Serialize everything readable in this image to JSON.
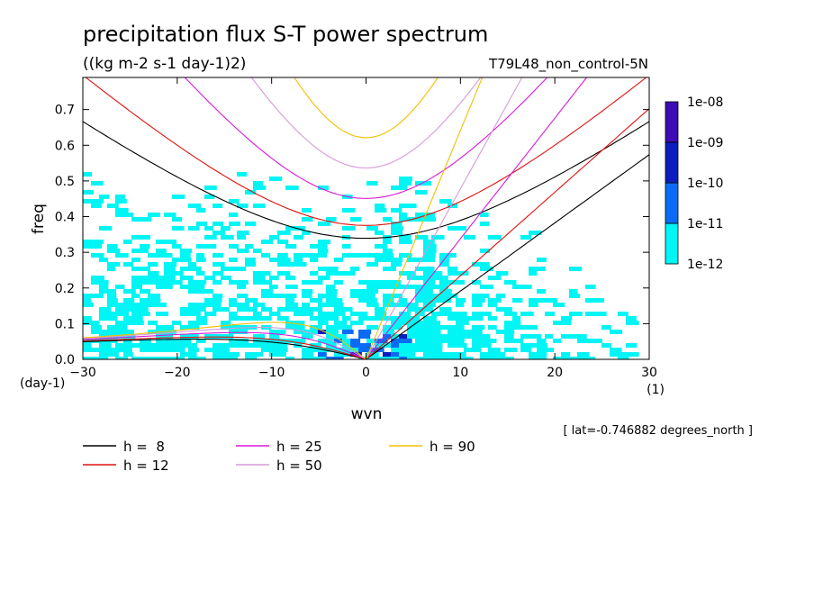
{
  "chart_data": {
    "type": "heatmap",
    "title": "precipitation flux S-T power spectrum",
    "subtitle": "((kg m-2 s-1 day-1)2)",
    "run_label": "T79L48_non_control-5N",
    "xlabel": "wvn",
    "x_unit": "(1)",
    "ylabel": "freq",
    "y_unit": "(day-1)",
    "xlim": [
      -30,
      30
    ],
    "ylim": [
      0,
      0.79
    ],
    "x_ticks": [
      -30,
      -20,
      -10,
      0,
      10,
      20,
      30
    ],
    "x_tick_labels": [
      "−30",
      "−20",
      "−10",
      "0",
      "10",
      "20",
      "30"
    ],
    "y_ticks": [
      0,
      0.1,
      0.2,
      0.3,
      0.4,
      0.5,
      0.6,
      0.7
    ],
    "y_tick_labels": [
      "0.0",
      "0.1",
      "0.2",
      "0.3",
      "0.4",
      "0.5",
      "0.6",
      "0.7"
    ],
    "colorbar": {
      "levels": [
        "1e-12",
        "1e-11",
        "1e-10",
        "1e-09",
        "1e-08"
      ],
      "colors": [
        "#00f5f5",
        "#0a6cf5",
        "#0a1ebe",
        "#3c0cb4"
      ]
    },
    "dispersion_curves": [
      {
        "name": "h =  8",
        "h": 8,
        "color": "#000000"
      },
      {
        "name": "h = 12",
        "h": 12,
        "color": "#e01010"
      },
      {
        "name": "h = 25",
        "h": 25,
        "color": "#d81ad8"
      },
      {
        "name": "h = 50",
        "h": 50,
        "color": "#d89ad8"
      },
      {
        "name": "h = 90",
        "h": 90,
        "color": "#f0c000"
      }
    ],
    "annotation": "[ lat=-0.746882 degrees_north ]"
  }
}
